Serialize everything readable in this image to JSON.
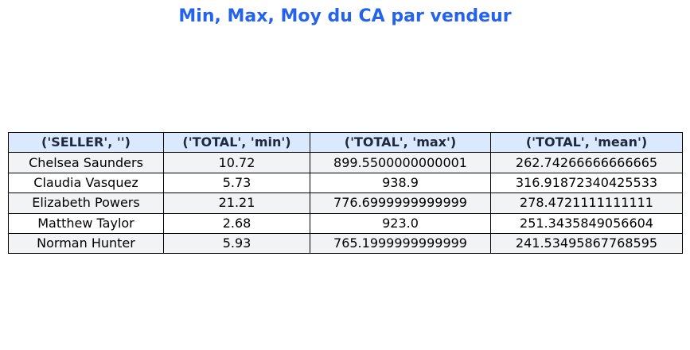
{
  "title": "Min, Max, Moy du CA par vendeur",
  "colors": {
    "title": "#2563eb",
    "header_bg": "#dbe9fe",
    "header_text": "#1e293b",
    "row_alt_bg": "#f1f3f5",
    "row_bg": "#ffffff"
  },
  "chart_data": {
    "type": "table",
    "title": "Min, Max, Moy du CA par vendeur",
    "columns": [
      "('SELLER', '')",
      "('TOTAL', 'min')",
      "('TOTAL', 'max')",
      "('TOTAL', 'mean')"
    ],
    "rows": [
      [
        "Chelsea Saunders",
        "10.72",
        "899.5500000000001",
        "262.74266666666665"
      ],
      [
        "Claudia Vasquez",
        "5.73",
        "938.9",
        "316.91872340425533"
      ],
      [
        "Elizabeth Powers",
        "21.21",
        "776.6999999999999",
        "278.4721111111111"
      ],
      [
        "Matthew Taylor",
        "2.68",
        "923.0",
        "251.3435849056604"
      ],
      [
        "Norman Hunter",
        "5.93",
        "765.1999999999999",
        "241.53495867768595"
      ]
    ]
  }
}
